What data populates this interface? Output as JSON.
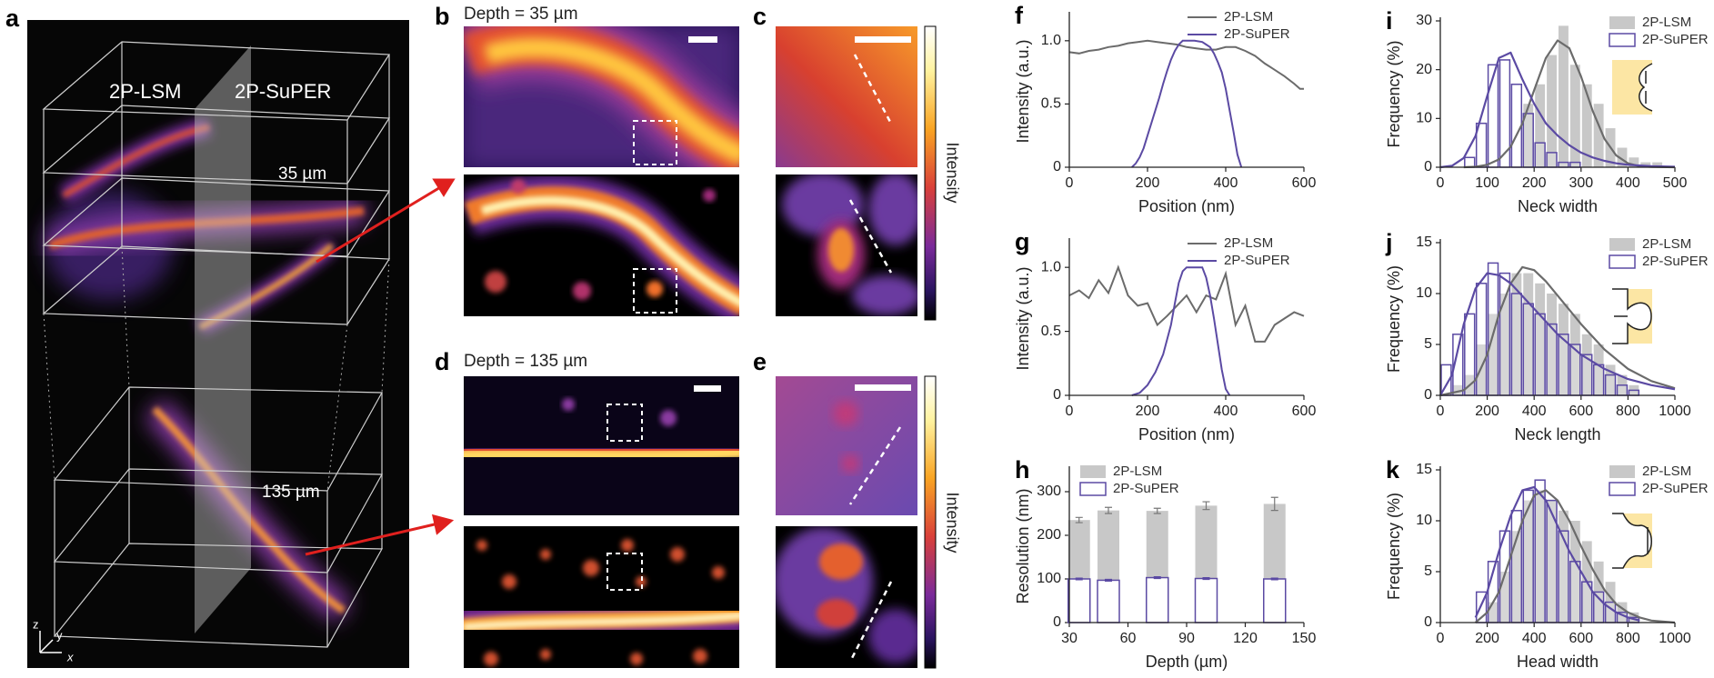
{
  "figure": {
    "panel_labels": [
      "a",
      "b",
      "c",
      "d",
      "e"
    ],
    "a_labels": [
      "2P-LSM",
      "2P-SuPER"
    ],
    "a_depths": [
      "35 µm",
      "135 µm"
    ],
    "a_axes": [
      "z",
      "y",
      "x"
    ],
    "b_title": "Depth = 35 µm",
    "d_title": "Depth = 135 µm",
    "colorbar_labels": [
      "Intensity",
      "Intensity"
    ]
  },
  "chart_data": [
    {
      "panel": "f",
      "type": "line",
      "xlabel": "Position (nm)",
      "ylabel": "Intensity (a.u.)",
      "xlim": [
        0,
        600
      ],
      "xticks": [
        0,
        200,
        400,
        600
      ],
      "ylim": [
        0,
        1.2
      ],
      "yticks": [
        0,
        0.5,
        {
          "value": 1,
          "label": "1.0"
        }
      ],
      "legend": "upper right",
      "series": [
        {
          "name": "2P-LSM",
          "color": "#6b6b6b",
          "x": [
            0,
            25,
            50,
            75,
            100,
            125,
            150,
            175,
            200,
            225,
            250,
            275,
            300,
            325,
            350,
            375,
            400,
            425,
            450,
            475,
            500,
            525,
            550,
            575,
            590,
            600
          ],
          "values": [
            0.91,
            0.9,
            0.92,
            0.93,
            0.95,
            0.96,
            0.98,
            0.99,
            1.0,
            0.99,
            0.98,
            0.97,
            0.95,
            0.94,
            0.93,
            0.93,
            0.95,
            0.95,
            0.92,
            0.88,
            0.82,
            0.77,
            0.72,
            0.66,
            0.62,
            0.62
          ]
        },
        {
          "name": "2P-SuPER",
          "color": "#5b4aa3",
          "x": [
            160,
            170,
            180,
            190,
            200,
            210,
            220,
            230,
            240,
            250,
            260,
            270,
            280,
            290,
            300,
            320,
            340,
            350,
            360,
            370,
            380,
            390,
            400,
            410,
            420,
            430,
            440
          ],
          "values": [
            0,
            0.03,
            0.08,
            0.15,
            0.25,
            0.35,
            0.45,
            0.55,
            0.66,
            0.76,
            0.85,
            0.92,
            0.97,
            1.0,
            1.0,
            1.0,
            0.99,
            0.97,
            0.95,
            0.9,
            0.83,
            0.75,
            0.62,
            0.45,
            0.28,
            0.1,
            0
          ]
        }
      ]
    },
    {
      "panel": "g",
      "type": "line",
      "xlabel": "Position (nm)",
      "ylabel": "Intensity (a.u.)",
      "xlim": [
        0,
        600
      ],
      "xticks": [
        0,
        200,
        400,
        600
      ],
      "ylim": [
        0,
        1.2
      ],
      "yticks": [
        0,
        0.5,
        {
          "value": 1,
          "label": "1.0"
        }
      ],
      "legend": "upper right",
      "series": [
        {
          "name": "2P-LSM",
          "color": "#6b6b6b",
          "x": [
            0,
            25,
            50,
            75,
            100,
            125,
            150,
            175,
            200,
            225,
            250,
            275,
            300,
            325,
            350,
            375,
            400,
            425,
            450,
            475,
            500,
            525,
            550,
            575,
            600
          ],
          "values": [
            0.78,
            0.82,
            0.76,
            0.9,
            0.8,
            1.0,
            0.78,
            0.7,
            0.72,
            0.55,
            0.62,
            0.7,
            0.78,
            0.65,
            0.78,
            0.75,
            0.95,
            0.55,
            0.7,
            0.42,
            0.42,
            0.55,
            0.6,
            0.65,
            0.62
          ]
        },
        {
          "name": "2P-SuPER",
          "color": "#5b4aa3",
          "x": [
            160,
            180,
            200,
            220,
            240,
            260,
            270,
            280,
            290,
            300,
            320,
            340,
            350,
            360,
            370,
            380,
            390,
            400,
            410
          ],
          "values": [
            0,
            0.02,
            0.08,
            0.18,
            0.32,
            0.55,
            0.72,
            0.88,
            0.97,
            1.0,
            1.0,
            1.0,
            0.92,
            0.78,
            0.6,
            0.4,
            0.2,
            0.05,
            0
          ]
        }
      ]
    },
    {
      "panel": "h",
      "type": "bar",
      "xlabel": "Depth (µm)",
      "ylabel": "Resolution (nm)",
      "xlim": [
        30,
        150
      ],
      "xticks": [
        30,
        60,
        90,
        120,
        150
      ],
      "ylim": [
        0,
        350
      ],
      "yticks": [
        0,
        100,
        200,
        300
      ],
      "legend": "upper left",
      "x": [
        35,
        50,
        75,
        100,
        135
      ],
      "series": [
        {
          "name": "2P-LSM",
          "color": "#c8c8c8",
          "style": "filled",
          "values": [
            235,
            257,
            256,
            268,
            272
          ],
          "errors": [
            6,
            7,
            6,
            9,
            15
          ]
        },
        {
          "name": "2P-SuPER",
          "color": "#5b4aa3",
          "style": "outline",
          "values": [
            100,
            97,
            103,
            101,
            100
          ],
          "errors": [
            2,
            2,
            2,
            2,
            2
          ]
        }
      ]
    },
    {
      "panel": "i",
      "type": "histogram",
      "xlabel": "Neck width",
      "ylabel": "Frequency (%)",
      "xlim": [
        0,
        500
      ],
      "xticks": [
        0,
        100,
        200,
        300,
        400,
        500
      ],
      "ylim": [
        0,
        30
      ],
      "yticks": [
        0,
        10,
        20,
        30
      ],
      "legend": "upper right",
      "bins": [
        50,
        75,
        100,
        125,
        150,
        175,
        200,
        225,
        250,
        275,
        300,
        325,
        350,
        375,
        400,
        425,
        450,
        475
      ],
      "series": [
        {
          "name": "2P-LSM",
          "color": "#c8c8c8",
          "style": "filled",
          "values": [
            0,
            0,
            0,
            0,
            0,
            13,
            17,
            23,
            29,
            21,
            17,
            13,
            8,
            4,
            2,
            1,
            1
          ],
          "fit": {
            "color": "#6b6b6b",
            "x": [
              50,
              75,
              100,
              125,
              150,
              175,
              200,
              225,
              250,
              275,
              300,
              325,
              350,
              375,
              400,
              425,
              450,
              500
            ],
            "values": [
              0,
              0.1,
              0.5,
              1.6,
              4.2,
              9,
              15.8,
              22.4,
              26,
              24.4,
              18.6,
              11.5,
              5.8,
              2.4,
              0.8,
              0.2,
              0.05,
              0
            ]
          }
        },
        {
          "name": "2P-SuPER",
          "color": "#5b4aa3",
          "style": "outline",
          "values": [
            2,
            9,
            21,
            22,
            17,
            11,
            5,
            3,
            1,
            1,
            0,
            0,
            0,
            0,
            0,
            0,
            0
          ],
          "fit": {
            "color": "#5b4aa3",
            "x": [
              0,
              25,
              50,
              75,
              100,
              125,
              150,
              175,
              200,
              225,
              250,
              275,
              300,
              325,
              350,
              375,
              400,
              450,
              500
            ],
            "values": [
              0,
              0.3,
              1.9,
              6.4,
              14.6,
              22.4,
              23.5,
              18,
              13,
              9,
              6.5,
              4.5,
              3,
              2,
              1.3,
              0.8,
              0.5,
              0.2,
              0.1
            ]
          }
        }
      ]
    },
    {
      "panel": "j",
      "type": "histogram",
      "xlabel": "Neck length",
      "ylabel": "Frequency (%)",
      "xlim": [
        0,
        1000
      ],
      "xticks": [
        0,
        200,
        400,
        600,
        800,
        1000
      ],
      "ylim": [
        0,
        15
      ],
      "yticks": [
        0,
        5,
        10,
        15
      ],
      "legend": "upper right",
      "bins": [
        0,
        50,
        100,
        150,
        200,
        250,
        300,
        350,
        400,
        450,
        500,
        550,
        600,
        650,
        700,
        750,
        800,
        850
      ],
      "series": [
        {
          "name": "2P-LSM",
          "color": "#c8c8c8",
          "style": "filled",
          "values": [
            0,
            1,
            2,
            5,
            8,
            10,
            12,
            12,
            11,
            10,
            9,
            8,
            6,
            5,
            3,
            2,
            1
          ],
          "fit": {
            "color": "#6b6b6b",
            "x": [
              0,
              100,
              150,
              200,
              250,
              300,
              350,
              400,
              450,
              500,
              600,
              700,
              800,
              900,
              1000
            ],
            "values": [
              0,
              0.5,
              1.5,
              4,
              8,
              11,
              12.6,
              12.3,
              11.2,
              9.8,
              7,
              4.5,
              2.6,
              1.4,
              0.7
            ]
          }
        },
        {
          "name": "2P-SuPER",
          "color": "#5b4aa3",
          "style": "outline",
          "values": [
            3,
            6,
            8,
            11,
            13,
            12,
            10,
            9,
            8,
            7,
            6,
            5,
            4,
            3,
            2,
            1,
            0.5
          ],
          "fit": {
            "color": "#5b4aa3",
            "x": [
              0,
              50,
              100,
              150,
              200,
              250,
              300,
              400,
              500,
              600,
              700,
              800,
              900,
              1000
            ],
            "values": [
              0,
              2,
              7,
              10.5,
              12,
              11.8,
              11,
              8.5,
              6,
              4,
              2.6,
              1.6,
              1,
              0.6
            ]
          }
        }
      ]
    },
    {
      "panel": "k",
      "type": "histogram",
      "xlabel": "Head width",
      "ylabel": "Frequency (%)",
      "xlim": [
        0,
        1000
      ],
      "xticks": [
        0,
        200,
        400,
        600,
        800,
        1000
      ],
      "ylim": [
        0,
        15
      ],
      "yticks": [
        0,
        5,
        10,
        15
      ],
      "legend": "upper right",
      "bins": [
        150,
        200,
        250,
        300,
        350,
        400,
        450,
        500,
        550,
        600,
        650,
        700,
        750,
        800,
        850
      ],
      "series": [
        {
          "name": "2P-LSM",
          "color": "#c8c8c8",
          "style": "filled",
          "values": [
            0,
            2,
            5,
            9,
            12,
            13,
            12,
            11,
            10,
            8,
            6,
            4,
            2,
            1
          ],
          "fit": {
            "color": "#6b6b6b",
            "x": [
              150,
              200,
              250,
              300,
              350,
              400,
              450,
              500,
              550,
              600,
              650,
              700,
              750,
              800,
              850,
              900,
              1000
            ],
            "values": [
              0,
              1,
              3,
              6.5,
              10,
              12.5,
              13,
              12,
              10,
              7.5,
              5.2,
              3.2,
              1.8,
              1,
              0.5,
              0.2,
              0
            ]
          }
        },
        {
          "name": "2P-SuPER",
          "color": "#5b4aa3",
          "style": "outline",
          "values": [
            3,
            6,
            9,
            11,
            13,
            14,
            12,
            9,
            6,
            4,
            3,
            2,
            1,
            0.5
          ],
          "fit": {
            "color": "#5b4aa3",
            "x": [
              150,
              200,
              250,
              300,
              350,
              400,
              450,
              500,
              550,
              600,
              650,
              700,
              750,
              800,
              850
            ],
            "values": [
              0.5,
              3,
              7,
              10.5,
              13,
              13.3,
              12,
              9.5,
              7,
              5,
              3,
              1.8,
              1,
              0.5,
              0.2
            ]
          }
        }
      ]
    }
  ]
}
